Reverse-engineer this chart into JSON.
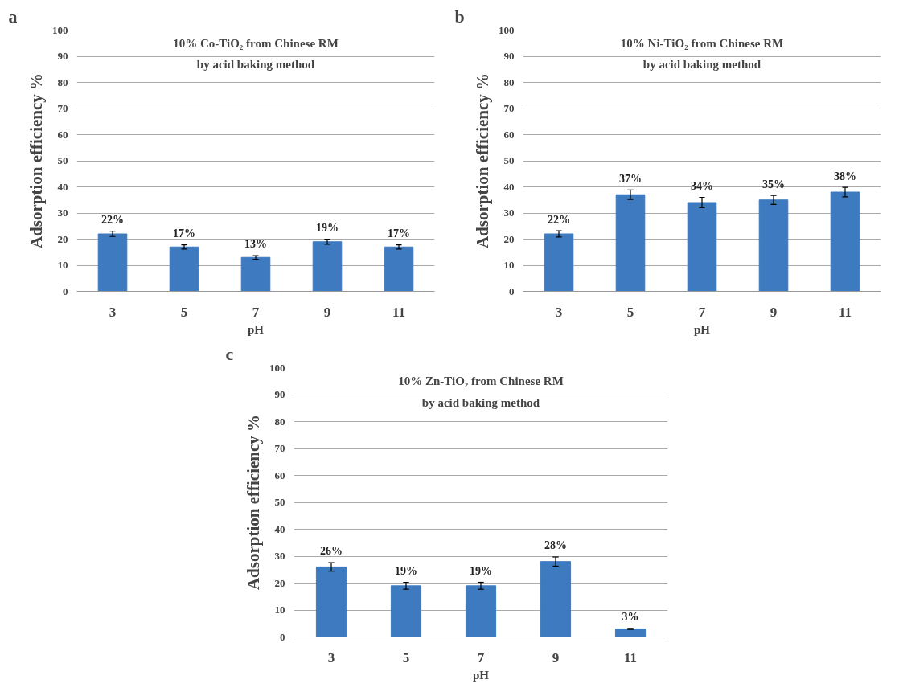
{
  "chart_data": [
    {
      "type": "bar",
      "title": "10% Co-TiO₂ from Chinese RM",
      "subtitle": "by acid baking method",
      "xlabel": "pH",
      "ylabel": "Adsorption efficiency %",
      "annotations": [
        "a"
      ],
      "categories": [
        "3",
        "5",
        "7",
        "9",
        "11"
      ],
      "values": [
        22,
        17,
        13,
        19,
        17
      ],
      "value_labels": [
        "22%",
        "17%",
        "13%",
        "19%",
        "17%"
      ],
      "errors": [
        1,
        0.8,
        0.7,
        1,
        0.8
      ],
      "color": "#3d7abf",
      "ylim": [
        0,
        100
      ],
      "yticks": [
        0,
        10,
        20,
        30,
        40,
        50,
        60,
        70,
        80,
        90,
        100
      ],
      "grid": "y"
    },
    {
      "type": "bar",
      "title": "10% Ni-TiO₂ from Chinese RM",
      "subtitle": "by acid baking method",
      "xlabel": "pH",
      "ylabel": "Adsorption efficiency %",
      "annotations": [
        "b"
      ],
      "categories": [
        "3",
        "5",
        "7",
        "9",
        "11"
      ],
      "values": [
        22,
        37,
        34,
        35,
        38
      ],
      "value_labels": [
        "22%",
        "37%",
        "34%",
        "35%",
        "38%"
      ],
      "errors": [
        1.2,
        1.8,
        2,
        1.7,
        1.8
      ],
      "color": "#3d7abf",
      "ylim": [
        0,
        100
      ],
      "yticks": [
        0,
        10,
        20,
        30,
        40,
        50,
        60,
        70,
        80,
        90,
        100
      ],
      "grid": "y"
    },
    {
      "type": "bar",
      "title": "10% Zn-TiO₂ from Chinese RM",
      "subtitle": "by acid baking method",
      "xlabel": "pH",
      "ylabel": "Adsorption efficiency %",
      "annotations": [
        "c"
      ],
      "categories": [
        "3",
        "5",
        "7",
        "9",
        "11"
      ],
      "values": [
        26,
        19,
        19,
        28,
        3
      ],
      "value_labels": [
        "26%",
        "19%",
        "19%",
        "28%",
        "3%"
      ],
      "errors": [
        1.6,
        1.3,
        1.3,
        1.7,
        0.2
      ],
      "color": "#3d7abf",
      "ylim": [
        0,
        100
      ],
      "yticks": [
        0,
        10,
        20,
        30,
        40,
        50,
        60,
        70,
        80,
        90,
        100
      ],
      "grid": "y"
    }
  ]
}
